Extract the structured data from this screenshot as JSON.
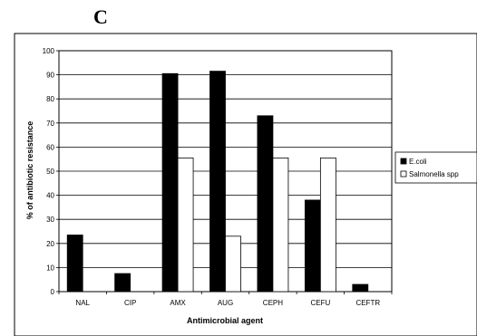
{
  "panel_label": "C",
  "chart_data": {
    "type": "bar",
    "categories": [
      "NAL",
      "CIP",
      "AMX",
      "AUG",
      "CEPH",
      "CEFU",
      "CEFTR"
    ],
    "series": [
      {
        "name": "E.coli",
        "values": [
          23.5,
          7.5,
          90.5,
          91.5,
          73,
          38,
          3
        ],
        "color": "#000000"
      },
      {
        "name": "Salmonella spp",
        "values": [
          0,
          0,
          55.5,
          23,
          55.5,
          55.5,
          0
        ],
        "color": "#ffffff"
      }
    ],
    "title": "",
    "xlabel": "Antimicrobial agent",
    "ylabel": "% of antibiotic resistance",
    "ylim": [
      0,
      100
    ],
    "yticks": [
      0,
      10,
      20,
      30,
      40,
      50,
      60,
      70,
      80,
      90,
      100
    ],
    "grid": true,
    "legend_position": "right"
  }
}
